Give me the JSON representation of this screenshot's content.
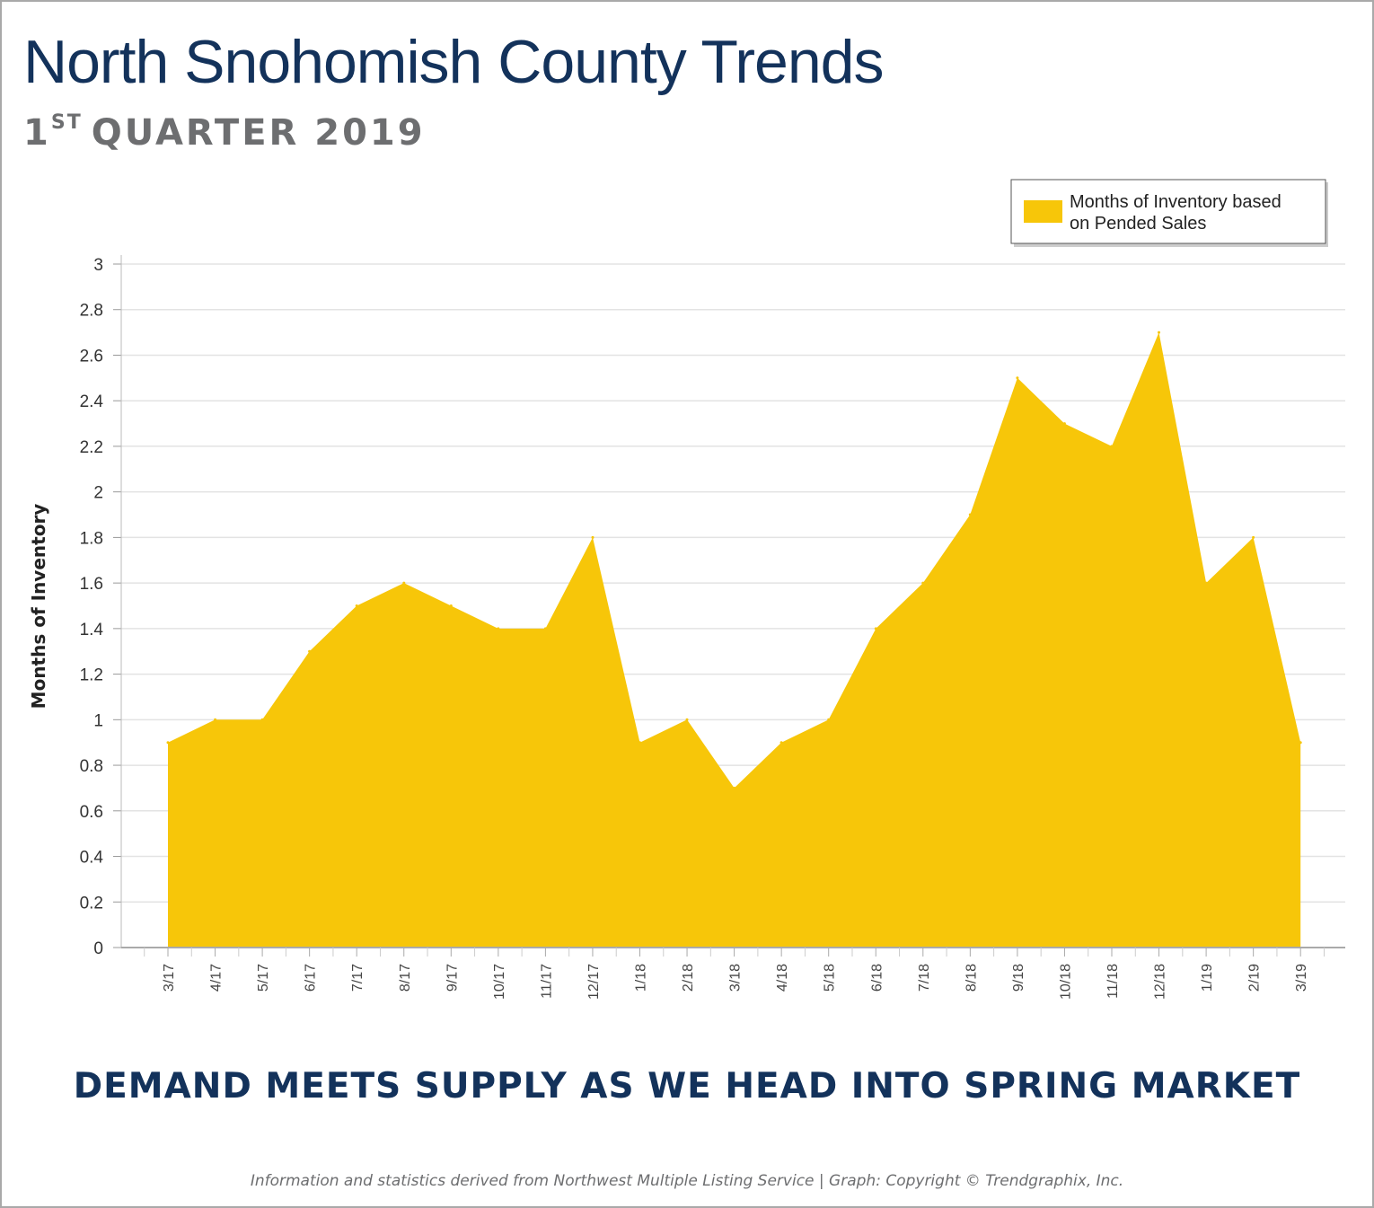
{
  "header": {
    "title": "North Snohomish County Trends",
    "subtitle_num": "1",
    "subtitle_sup": "ST",
    "subtitle_rest": "QUARTER 2019"
  },
  "headline": "DEMAND MEETS SUPPLY AS WE HEAD INTO SPRING MARKET",
  "footer": "Information and statistics derived from Northwest Multiple Listing Service  |  Graph: Copyright © Trendgraphix, Inc.",
  "chart_data": {
    "type": "area",
    "title": "",
    "xlabel": "",
    "ylabel": "Months of Inventory",
    "categories": [
      "3/17",
      "4/17",
      "5/17",
      "6/17",
      "7/17",
      "8/17",
      "9/17",
      "10/17",
      "11/17",
      "12/17",
      "1/18",
      "2/18",
      "3/18",
      "4/18",
      "5/18",
      "6/18",
      "7/18",
      "8/18",
      "9/18",
      "10/18",
      "11/18",
      "12/18",
      "1/19",
      "2/19",
      "3/19"
    ],
    "series": [
      {
        "name": "Months of Inventory based on Pended Sales",
        "values": [
          0.9,
          1.0,
          1.0,
          1.3,
          1.5,
          1.6,
          1.5,
          1.4,
          1.4,
          1.8,
          0.9,
          1.0,
          0.7,
          0.9,
          1.0,
          1.4,
          1.6,
          1.9,
          2.5,
          2.3,
          2.2,
          2.7,
          1.6,
          1.8,
          0.9
        ],
        "color": "#f7c609"
      }
    ],
    "yticks": [
      "0",
      "0.2",
      "0.4",
      "0.6",
      "0.8",
      "1",
      "1.2",
      "1.4",
      "1.6",
      "1.8",
      "2",
      "2.2",
      "2.4",
      "2.6",
      "2.8",
      "3"
    ],
    "ylim": [
      0,
      3
    ],
    "grid": true,
    "legend": "top-right",
    "legend_lines": [
      "Months of Inventory based",
      "on Pended Sales"
    ]
  }
}
